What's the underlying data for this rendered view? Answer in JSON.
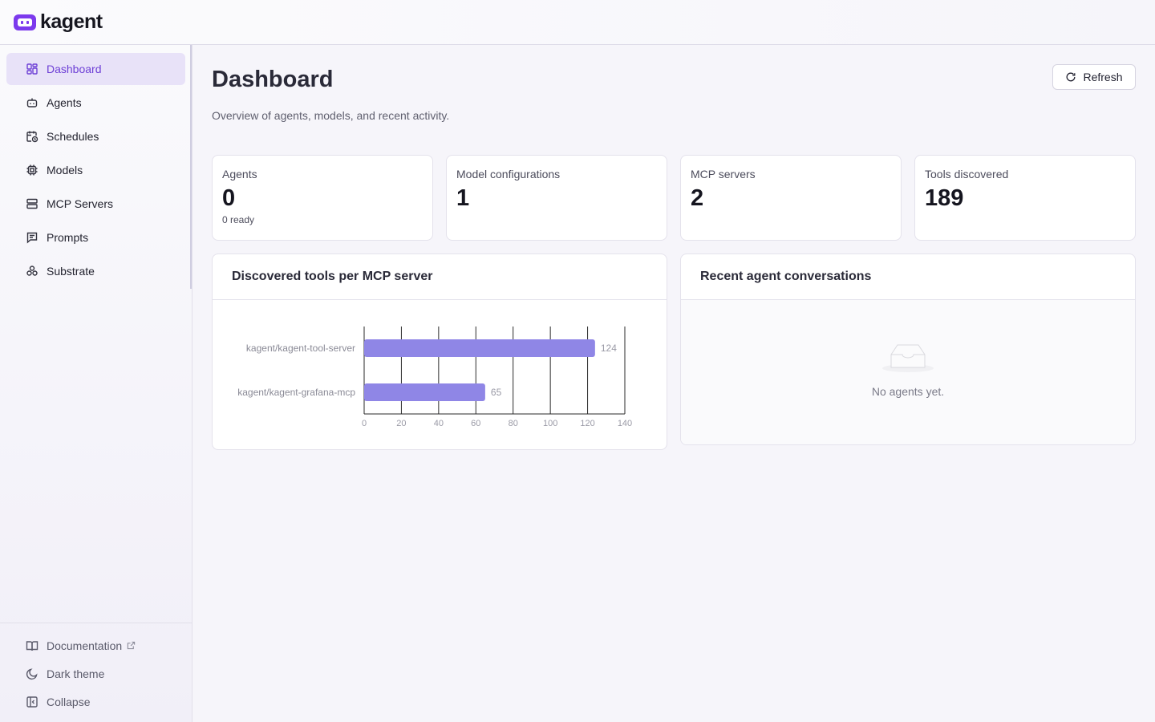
{
  "app": {
    "name": "kagent"
  },
  "sidebar": {
    "items": [
      {
        "label": "Dashboard",
        "icon": "dashboard-icon",
        "active": true
      },
      {
        "label": "Agents",
        "icon": "bot-icon",
        "active": false
      },
      {
        "label": "Schedules",
        "icon": "calendar-clock-icon",
        "active": false
      },
      {
        "label": "Models",
        "icon": "cpu-icon",
        "active": false
      },
      {
        "label": "MCP Servers",
        "icon": "server-icon",
        "active": false
      },
      {
        "label": "Prompts",
        "icon": "message-square-icon",
        "active": false
      },
      {
        "label": "Substrate",
        "icon": "boxes-icon",
        "active": false
      }
    ],
    "bottom": {
      "documentation": "Documentation",
      "dark_theme": "Dark theme",
      "collapse": "Collapse"
    }
  },
  "header": {
    "title": "Dashboard",
    "subtitle": "Overview of agents, models, and recent activity.",
    "refresh_label": "Refresh"
  },
  "stats": [
    {
      "label": "Agents",
      "value": "0",
      "sub": "0 ready"
    },
    {
      "label": "Model configurations",
      "value": "1",
      "sub": ""
    },
    {
      "label": "MCP servers",
      "value": "2",
      "sub": ""
    },
    {
      "label": "Tools discovered",
      "value": "189",
      "sub": ""
    }
  ],
  "tools_panel": {
    "title": "Discovered tools per MCP server"
  },
  "conversations_panel": {
    "title": "Recent agent conversations",
    "empty_text": "No agents yet."
  },
  "colors": {
    "accent": "#6d3fd6",
    "bar": "#8f86e6",
    "active_bg": "#e8e2f8"
  },
  "chart_data": {
    "type": "bar",
    "orientation": "horizontal",
    "title": "Discovered tools per MCP server",
    "categories": [
      "kagent/kagent-tool-server",
      "kagent/kagent-grafana-mcp"
    ],
    "values": [
      124,
      65
    ],
    "xlim": [
      0,
      140
    ],
    "xticks": [
      0,
      20,
      40,
      60,
      80,
      100,
      120,
      140
    ],
    "grid": true
  }
}
